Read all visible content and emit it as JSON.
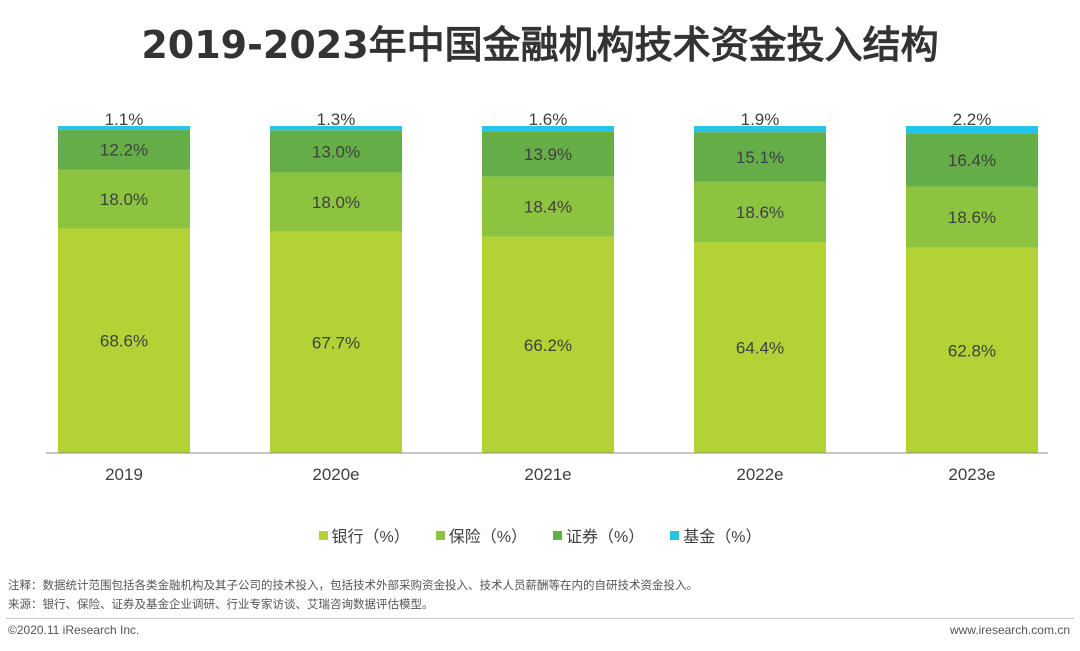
{
  "chart_data": {
    "type": "bar",
    "stacked": true,
    "title": "2019-2023年中国金融机构技术资金投入结构",
    "categories": [
      "2019",
      "2020e",
      "2021e",
      "2022e",
      "2023e"
    ],
    "series": [
      {
        "name": "银行（%）",
        "color": "#b2d235",
        "values": [
          68.6,
          67.7,
          66.2,
          64.4,
          62.8
        ]
      },
      {
        "name": "保险（%）",
        "color": "#8cc43f",
        "values": [
          18.0,
          18.0,
          18.4,
          18.6,
          18.6
        ]
      },
      {
        "name": "证券（%）",
        "color": "#65ae47",
        "values": [
          12.2,
          13.0,
          13.9,
          15.1,
          16.4
        ]
      },
      {
        "name": "基金（%）",
        "color": "#27c4ea",
        "values": [
          1.1,
          1.3,
          1.6,
          1.9,
          2.2
        ]
      }
    ],
    "ylim": [
      0,
      100
    ],
    "xlabel": "",
    "ylabel": "",
    "legend": "bottom-center"
  },
  "notes": {
    "note": "注释：数据统计范围包括各类金融机构及其子公司的技术投入，包括技术外部采购资金投入、技术人员薪酬等在内的自研技术资金投入。",
    "source": "来源：银行、保险、证券及基金企业调研、行业专家访谈、艾瑞咨询数据评估模型。"
  },
  "footer": {
    "copyright": "©2020.11 iResearch Inc.",
    "website": "www.iresearch.com.cn"
  }
}
